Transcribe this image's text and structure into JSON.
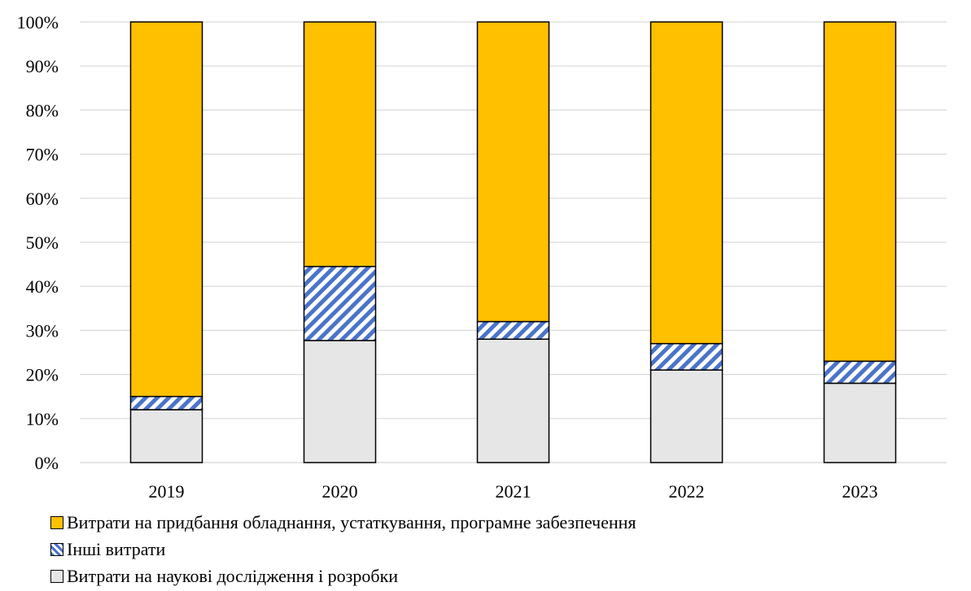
{
  "chart_data": {
    "type": "bar",
    "stacked": true,
    "percent": true,
    "categories": [
      "2019",
      "2020",
      "2021",
      "2022",
      "2023"
    ],
    "series": [
      {
        "name": "Витрати на наукові дослідження і розробки",
        "color": "#e6e6e6",
        "pattern": "solid",
        "values": [
          12,
          27.7,
          28,
          21,
          18
        ]
      },
      {
        "name": "Інші витрати",
        "color": "#4a74c9",
        "pattern": "diagonal-stripes",
        "values": [
          3,
          16.8,
          4,
          6,
          5
        ]
      },
      {
        "name": "Витрати на придбання обладнання, устаткування, програмне  забезпечення",
        "color": "#ffc000",
        "pattern": "solid",
        "values": [
          85,
          55.5,
          68,
          73,
          77
        ]
      }
    ],
    "y_ticks": [
      "0%",
      "10%",
      "20%",
      "30%",
      "40%",
      "50%",
      "60%",
      "70%",
      "80%",
      "90%",
      "100%"
    ],
    "ylim": [
      0,
      100
    ],
    "grid": true,
    "legend_position": "bottom"
  }
}
